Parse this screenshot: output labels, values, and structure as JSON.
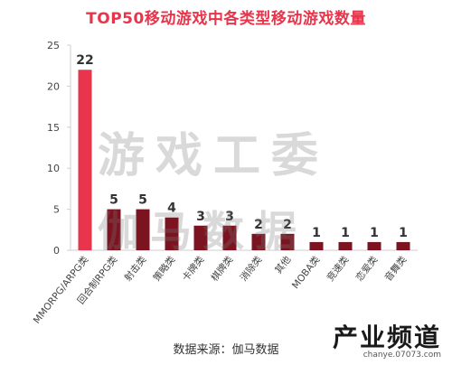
{
  "chart_data": {
    "type": "bar",
    "title": "TOP50移动游戏中各类型移动游戏数量",
    "categories": [
      "MMORPG/ARPG类",
      "回合制RPG类",
      "射击类",
      "策略类",
      "卡牌类",
      "棋牌类",
      "消除类",
      "其他",
      "MOBA类",
      "竞速类",
      "恋爱类",
      "音舞类"
    ],
    "values": [
      22,
      5,
      5,
      4,
      3,
      3,
      2,
      2,
      1,
      1,
      1,
      1
    ],
    "ylim": [
      0,
      25
    ],
    "yticks": [
      0,
      5,
      10,
      15,
      20,
      25
    ],
    "xlabel": "",
    "ylabel": "",
    "grid": false,
    "data_labels": true,
    "colors": {
      "highlight": "#e8354b",
      "bar": "#7b1420",
      "title": "#e8354b"
    }
  },
  "watermark": {
    "line1": "游戏工委",
    "line2": "伽马数据"
  },
  "source": "数据来源：伽马数据",
  "logo": {
    "main": "产业频道",
    "sub": "chanye.07073.com"
  }
}
